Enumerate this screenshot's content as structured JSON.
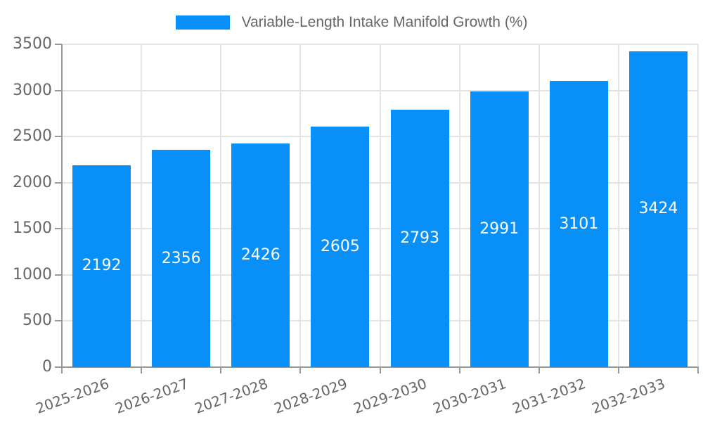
{
  "chart_data": {
    "type": "bar",
    "title": "Variable-Length Intake Manifold Growth (%)",
    "categories": [
      "2025-2026",
      "2026-2027",
      "2027-2028",
      "2028-2029",
      "2029-2030",
      "2030-2031",
      "2031-2032",
      "2032-2033"
    ],
    "values": [
      2192,
      2356,
      2426,
      2605,
      2793,
      2991,
      3101,
      3424
    ],
    "xlabel": "",
    "ylabel": "",
    "ylim": [
      0,
      3500
    ],
    "ytick_step": 500,
    "ytick_labels": [
      "0",
      "500",
      "1000",
      "1500",
      "2000",
      "2500",
      "3000",
      "3500"
    ],
    "grid": true,
    "legend_position": "top-center",
    "x_label_rotation_deg": -20,
    "colors": {
      "bar_fill": "#0990f8",
      "value_label": "#ffffff",
      "grid_line": "#e4e4e4",
      "axis_line": "#999999",
      "tick_label": "#666666",
      "title_text": "#666666",
      "background": "#ffffff"
    }
  }
}
